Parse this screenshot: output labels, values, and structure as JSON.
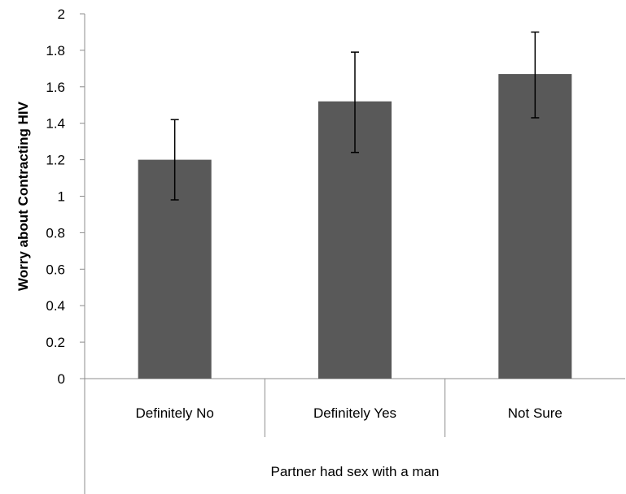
{
  "chart_data": {
    "type": "bar",
    "categories": [
      "Definitely No",
      "Definitely Yes",
      "Not Sure"
    ],
    "values": [
      1.2,
      1.52,
      1.67
    ],
    "error_upper": [
      1.42,
      1.79,
      1.9
    ],
    "error_lower": [
      0.98,
      1.24,
      1.43
    ],
    "title": "",
    "xlabel": "Partner had sex with a man",
    "ylabel": "Worry about Contracting HIV",
    "ylim": [
      0,
      2
    ],
    "yticks": [
      "0",
      "0.2",
      "0.4",
      "0.6",
      "0.8",
      "1",
      "1.2",
      "1.4",
      "1.6",
      "1.8",
      "2"
    ],
    "grid": false,
    "legend": "none",
    "bar_color": "#595959"
  }
}
